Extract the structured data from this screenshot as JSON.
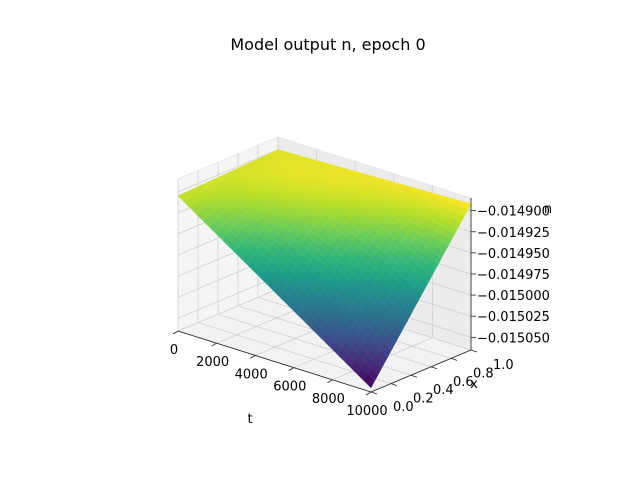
{
  "chart_data": {
    "type": "surface",
    "title": "Model output n, epoch 0",
    "xlabel": "t",
    "ylabel": "x",
    "zlabel": "n",
    "x_ticks": [
      "0",
      "2000",
      "4000",
      "6000",
      "8000",
      "10000"
    ],
    "y_ticks": [
      "0.0",
      "0.2",
      "0.4",
      "0.6",
      "0.8",
      "1.0"
    ],
    "z_ticks": [
      "−0.014900",
      "−0.014925",
      "−0.014950",
      "−0.014975",
      "−0.015000",
      "−0.015025",
      "−0.015050"
    ],
    "xlim": [
      0,
      10000
    ],
    "ylim": [
      0,
      1
    ],
    "zlim": [
      -0.015065,
      -0.014885
    ],
    "grid": true,
    "colormap": "viridis",
    "corner_values": {
      "t0_x0": -0.014905,
      "t0_x1": -0.0149,
      "t10000_x0": -0.01506,
      "t10000_x1": -0.014892
    }
  },
  "colors": {
    "background": "#ffffff",
    "pane": "#f2f2f2",
    "grid": "#d0d0d0"
  }
}
